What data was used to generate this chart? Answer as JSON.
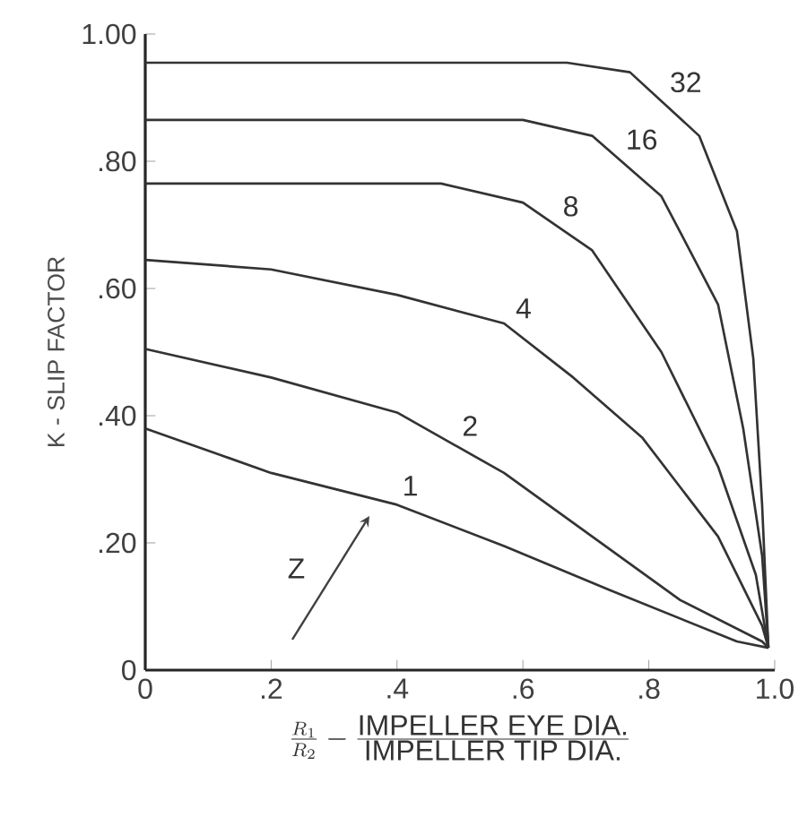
{
  "chart_data": {
    "type": "line",
    "xlabel": "\\frac{R_1}{R_2} - \\frac{\\mbox{IMPELLER EYE DIA.}}{\\mbox{IMPELLER TIP DIA.}}",
    "ylabel": "K - SLIP FACTOR",
    "xlim": [
      0,
      1.0
    ],
    "ylim": [
      0,
      1.0
    ],
    "xticks": [
      0,
      {
        "value": 0.2,
        "label": ".2"
      },
      {
        "value": 0.4,
        "label": ".4"
      },
      {
        "value": 0.6,
        "label": ".6"
      },
      {
        "value": 0.8,
        "label": ".8"
      },
      {
        "value": 1.0,
        "label": "1.0"
      }
    ],
    "yticks": [
      0,
      {
        "value": 0.2,
        "label": ".20"
      },
      {
        "value": 0.4,
        "label": ".40"
      },
      {
        "value": 0.6,
        "label": ".60"
      },
      {
        "value": 0.8,
        "label": ".80"
      },
      {
        "value": 1.0,
        "label": "1.00"
      }
    ],
    "marker": "none",
    "line_style": "solid",
    "series": [
      {
        "color": "#333333",
        "x": [
          0,
          0.2,
          0.4,
          0.57,
          0.74,
          0.94,
          0.99
        ],
        "values": [
          0.38,
          0.31,
          0.26,
          0.195,
          0.125,
          0.045,
          0.035
        ]
      },
      {
        "color": "#333333",
        "x": [
          0,
          0.2,
          0.4,
          0.57,
          0.71,
          0.85,
          0.98,
          0.99
        ],
        "values": [
          0.505,
          0.46,
          0.405,
          0.31,
          0.21,
          0.11,
          0.045,
          0.035
        ]
      },
      {
        "color": "#333333",
        "x": [
          0,
          0.2,
          0.4,
          0.57,
          0.68,
          0.79,
          0.91,
          0.98,
          0.99
        ],
        "values": [
          0.645,
          0.63,
          0.59,
          0.545,
          0.46,
          0.365,
          0.21,
          0.07,
          0.035
        ]
      },
      {
        "color": "#333333",
        "x": [
          0,
          0.47,
          0.6,
          0.71,
          0.82,
          0.91,
          0.97,
          0.99
        ],
        "values": [
          0.765,
          0.765,
          0.735,
          0.66,
          0.5,
          0.32,
          0.15,
          0.035
        ]
      },
      {
        "color": "#333333",
        "x": [
          0,
          0.6,
          0.71,
          0.82,
          0.91,
          0.95,
          0.98,
          0.99
        ],
        "values": [
          0.865,
          0.865,
          0.84,
          0.745,
          0.575,
          0.38,
          0.18,
          0.035
        ]
      },
      {
        "color": "#333333",
        "x": [
          0,
          0.67,
          0.77,
          0.88,
          0.94,
          0.966,
          0.98,
          0.99
        ],
        "values": [
          0.955,
          0.955,
          0.94,
          0.84,
          0.69,
          0.49,
          0.26,
          0.035
        ]
      }
    ],
    "annotations": [
      {
        "text": "1",
        "x": 0.395,
        "y": 0.261
      },
      {
        "text": "2",
        "x": 0.49,
        "y": 0.355
      },
      {
        "text": "4",
        "x": 0.575,
        "y": 0.54
      },
      {
        "text": "8",
        "x": 0.65,
        "y": 0.7
      },
      {
        "text": "16",
        "x": 0.75,
        "y": 0.805
      },
      {
        "text": "32",
        "x": 0.82,
        "y": 0.895
      },
      "Z"
    ]
  }
}
